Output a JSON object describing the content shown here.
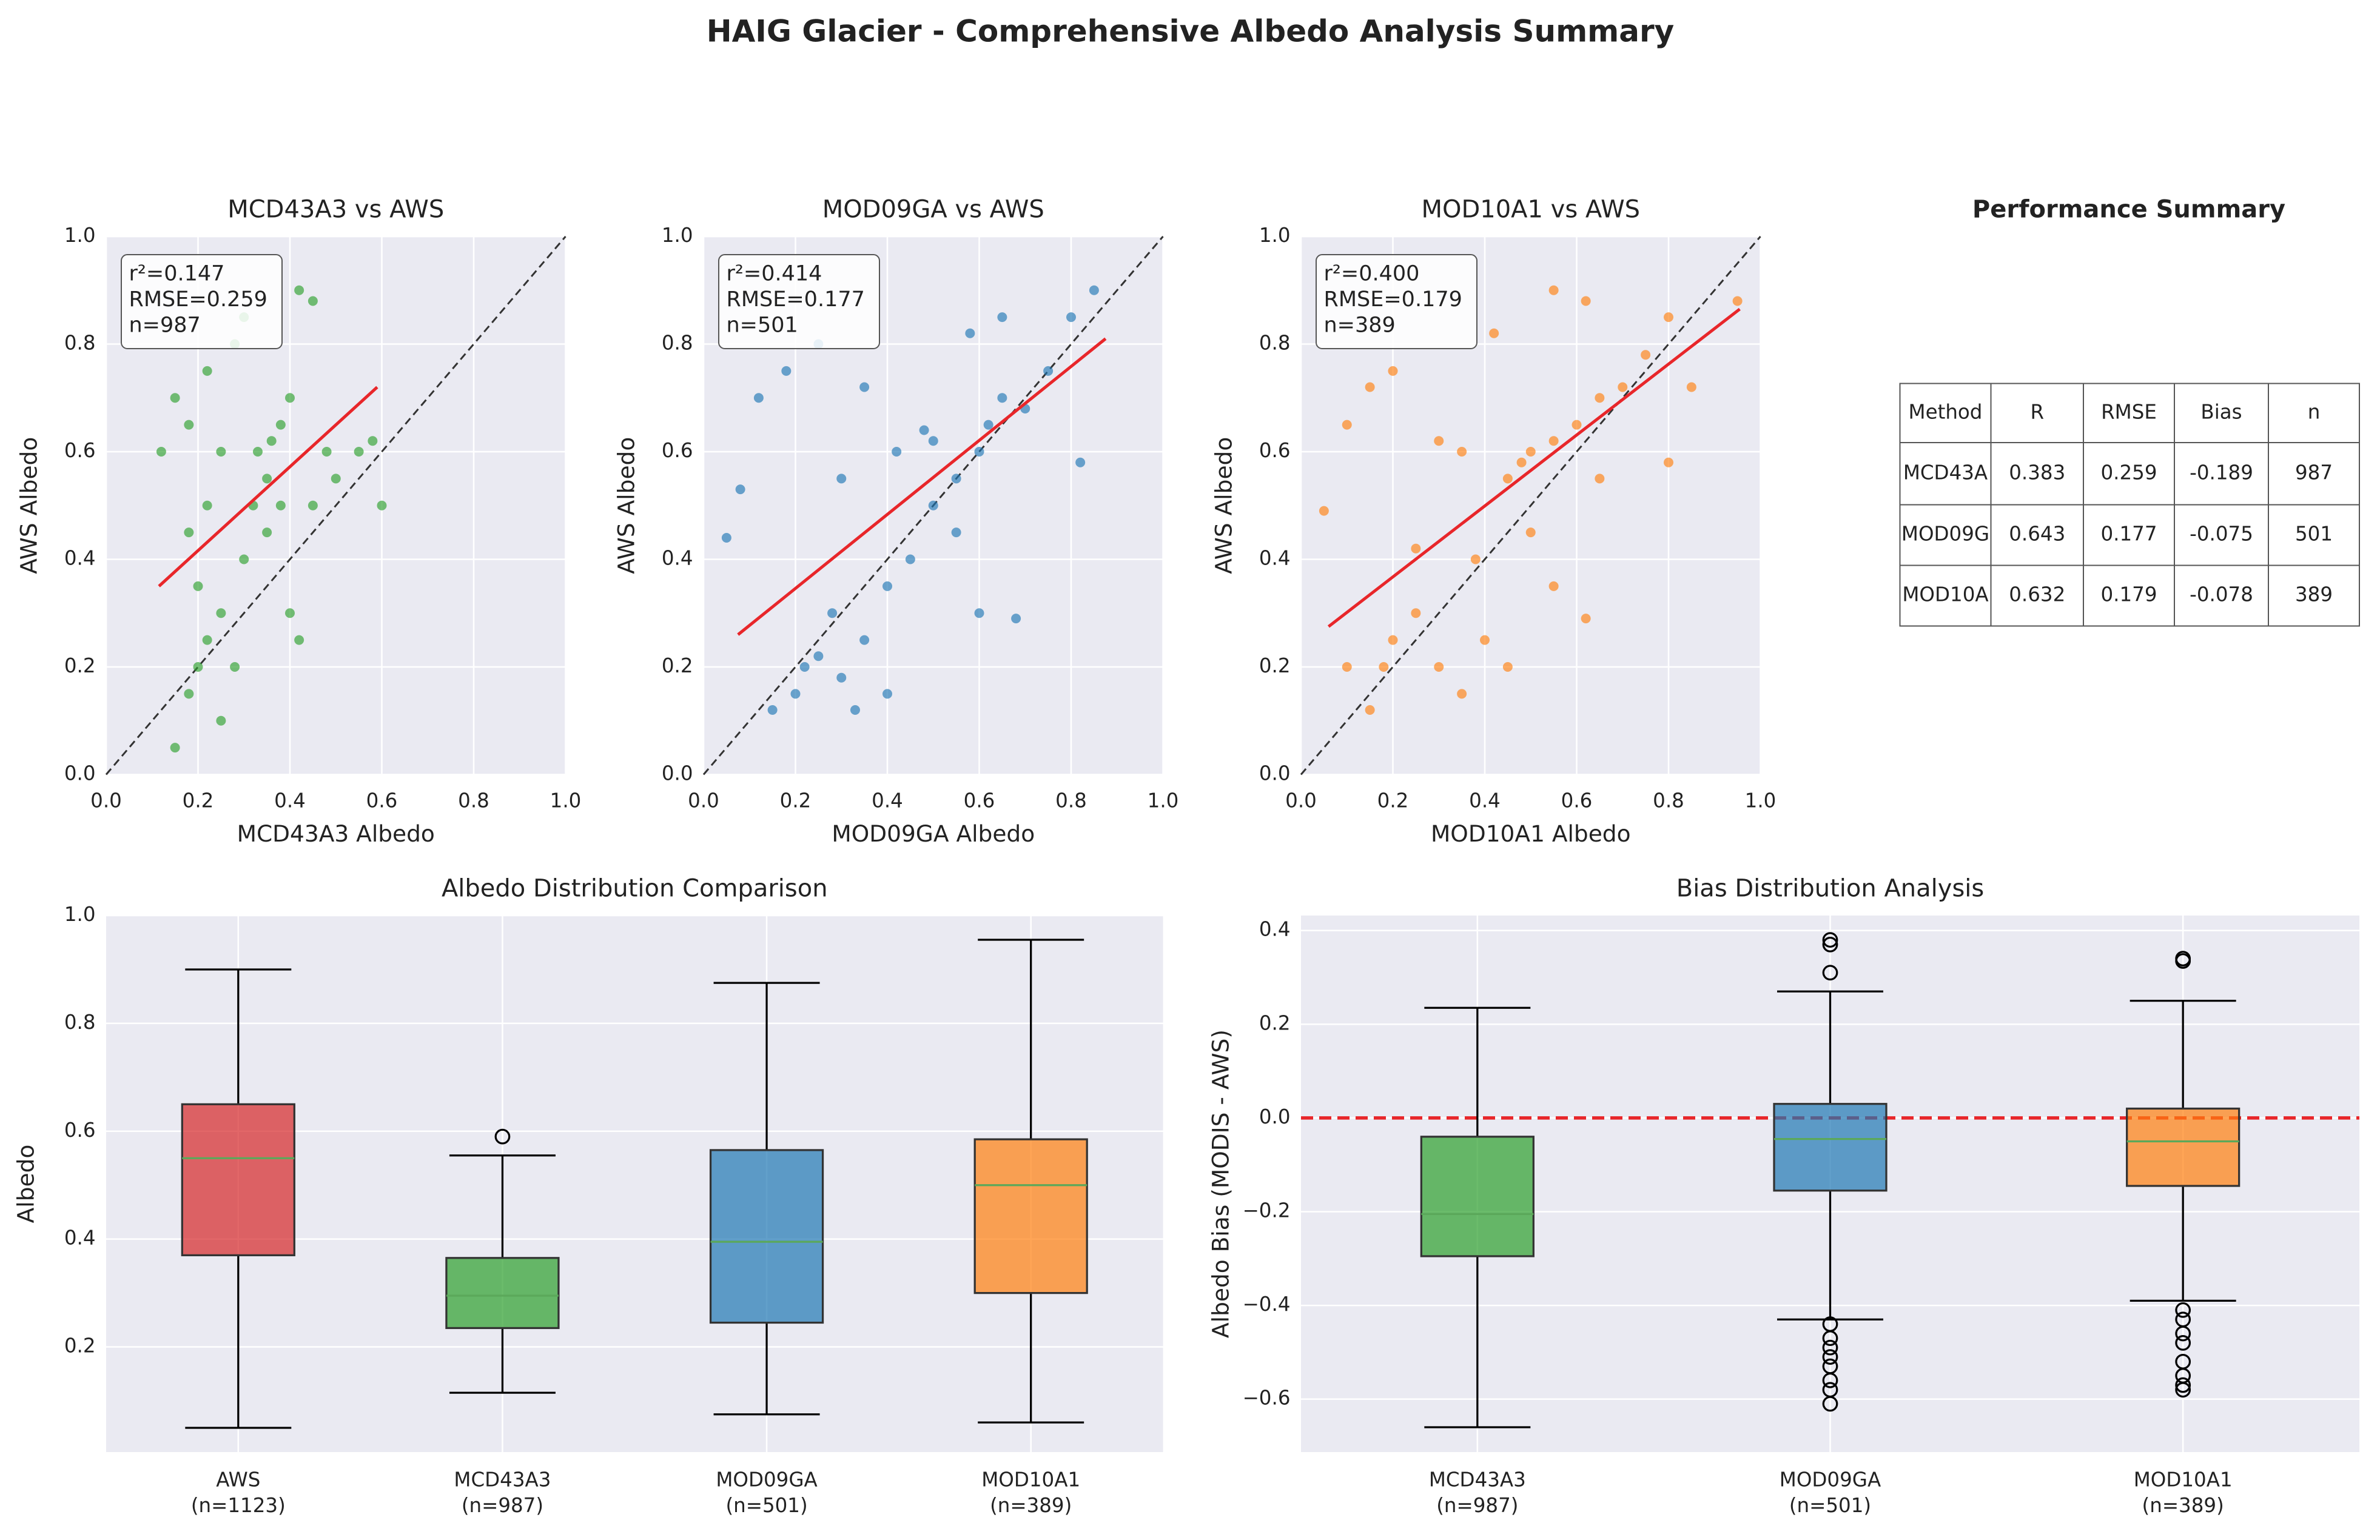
{
  "title": "HAIG Glacier - Comprehensive Albedo Analysis Summary",
  "chart_data": [
    {
      "type": "scatter",
      "title": "MCD43A3 vs AWS",
      "x_label": "MCD43A3 Albedo",
      "y_label": "AWS Albedo",
      "color": "#2ca02c",
      "annotation": [
        "r²=0.147",
        "RMSE=0.259",
        "n=987"
      ],
      "x": [
        0.15,
        0.18,
        0.2,
        0.22,
        0.25,
        0.2,
        0.18,
        0.22,
        0.25,
        0.18,
        0.15,
        0.22,
        0.28,
        0.3,
        0.33,
        0.35,
        0.38,
        0.4,
        0.42,
        0.45,
        0.38,
        0.35,
        0.3,
        0.4,
        0.42,
        0.45,
        0.5,
        0.55,
        0.6,
        0.58,
        0.28,
        0.25,
        0.32,
        0.36,
        0.12,
        0.48
      ],
      "y": [
        0.05,
        0.15,
        0.2,
        0.25,
        0.3,
        0.35,
        0.45,
        0.5,
        0.6,
        0.65,
        0.7,
        0.75,
        0.8,
        0.85,
        0.6,
        0.55,
        0.65,
        0.7,
        0.9,
        0.88,
        0.5,
        0.45,
        0.4,
        0.3,
        0.25,
        0.5,
        0.55,
        0.6,
        0.5,
        0.62,
        0.2,
        0.1,
        0.5,
        0.62,
        0.6,
        0.6
      ],
      "fit": {
        "color": "#e8262a",
        "x": [
          0.115,
          0.59
        ],
        "y": [
          0.35,
          0.72
        ]
      },
      "xlim": [
        0,
        1
      ],
      "ylim": [
        0,
        1
      ],
      "xticks": [
        {
          "value": 0,
          "label": "0.0"
        },
        0.2,
        0.4,
        0.6,
        0.8,
        {
          "value": 1,
          "label": "1.0"
        }
      ],
      "yticks": [
        {
          "value": 0,
          "label": "0.0"
        },
        0.2,
        0.4,
        0.6,
        0.8,
        {
          "value": 1,
          "label": "1.0"
        }
      ],
      "grid": true
    },
    {
      "type": "scatter",
      "title": "MOD09GA vs AWS",
      "x_label": "MOD09GA Albedo",
      "y_label": "AWS Albedo",
      "color": "#1f77b4",
      "annotation": [
        "r²=0.414",
        "RMSE=0.177",
        "n=501"
      ],
      "x": [
        0.15,
        0.2,
        0.22,
        0.25,
        0.3,
        0.35,
        0.28,
        0.4,
        0.45,
        0.5,
        0.55,
        0.6,
        0.62,
        0.65,
        0.7,
        0.75,
        0.8,
        0.85,
        0.05,
        0.08,
        0.12,
        0.18,
        0.25,
        0.35,
        0.3,
        0.42,
        0.5,
        0.55,
        0.6,
        0.68,
        0.58,
        0.65,
        0.4,
        0.33,
        0.82,
        0.48
      ],
      "y": [
        0.12,
        0.15,
        0.2,
        0.22,
        0.18,
        0.25,
        0.3,
        0.35,
        0.4,
        0.5,
        0.55,
        0.6,
        0.65,
        0.7,
        0.68,
        0.75,
        0.85,
        0.9,
        0.44,
        0.53,
        0.7,
        0.75,
        0.8,
        0.72,
        0.55,
        0.6,
        0.62,
        0.45,
        0.3,
        0.29,
        0.82,
        0.85,
        0.15,
        0.12,
        0.58,
        0.64
      ],
      "fit": {
        "color": "#e8262a",
        "x": [
          0.075,
          0.875
        ],
        "y": [
          0.26,
          0.81
        ]
      },
      "xlim": [
        0,
        1
      ],
      "ylim": [
        0,
        1
      ],
      "xticks": [
        {
          "value": 0,
          "label": "0.0"
        },
        0.2,
        0.4,
        0.6,
        0.8,
        {
          "value": 1,
          "label": "1.0"
        }
      ],
      "yticks": [
        {
          "value": 0,
          "label": "0.0"
        },
        0.2,
        0.4,
        0.6,
        0.8,
        {
          "value": 1,
          "label": "1.0"
        }
      ],
      "grid": true
    },
    {
      "type": "scatter",
      "title": "MOD10A1 vs AWS",
      "x_label": "MOD10A1 Albedo",
      "y_label": "AWS Albedo",
      "color": "#ff7f0e",
      "annotation": [
        "r²=0.400",
        "RMSE=0.179",
        "n=389"
      ],
      "x": [
        0.15,
        0.18,
        0.2,
        0.25,
        0.3,
        0.35,
        0.4,
        0.45,
        0.1,
        0.05,
        0.1,
        0.15,
        0.2,
        0.3,
        0.35,
        0.45,
        0.5,
        0.55,
        0.6,
        0.65,
        0.7,
        0.75,
        0.8,
        0.85,
        0.95,
        0.55,
        0.62,
        0.5,
        0.55,
        0.62,
        0.65,
        0.8,
        0.42,
        0.25,
        0.38,
        0.48
      ],
      "y": [
        0.12,
        0.2,
        0.25,
        0.3,
        0.2,
        0.15,
        0.25,
        0.2,
        0.2,
        0.49,
        0.65,
        0.72,
        0.75,
        0.62,
        0.6,
        0.55,
        0.6,
        0.62,
        0.65,
        0.7,
        0.72,
        0.78,
        0.85,
        0.72,
        0.88,
        0.9,
        0.88,
        0.45,
        0.35,
        0.29,
        0.55,
        0.58,
        0.82,
        0.42,
        0.4,
        0.58
      ],
      "fit": {
        "color": "#e8262a",
        "x": [
          0.06,
          0.955
        ],
        "y": [
          0.275,
          0.865
        ]
      },
      "xlim": [
        0,
        1
      ],
      "ylim": [
        0,
        1
      ],
      "xticks": [
        {
          "value": 0,
          "label": "0.0"
        },
        0.2,
        0.4,
        0.6,
        0.8,
        {
          "value": 1,
          "label": "1.0"
        }
      ],
      "yticks": [
        {
          "value": 0,
          "label": "0.0"
        },
        0.2,
        0.4,
        0.6,
        0.8,
        {
          "value": 1,
          "label": "1.0"
        }
      ],
      "grid": true
    },
    {
      "type": "box",
      "title": "Albedo Distribution Comparison",
      "y_label": "Albedo",
      "categories": [
        "AWS",
        "MCD43A3",
        "MOD09GA",
        "MOD10A1"
      ],
      "n_labels": [
        "(n=1123)",
        "(n=987)",
        "(n=501)",
        "(n=389)"
      ],
      "boxes": [
        {
          "color": "#d62728",
          "whislo": 0.05,
          "q1": 0.37,
          "med": 0.55,
          "q3": 0.65,
          "whishi": 0.9,
          "fliers": []
        },
        {
          "color": "#2ca02c",
          "whislo": 0.115,
          "q1": 0.235,
          "med": 0.295,
          "q3": 0.365,
          "whishi": 0.555,
          "fliers": [
            0.59
          ]
        },
        {
          "color": "#1f77b4",
          "whislo": 0.075,
          "q1": 0.245,
          "med": 0.395,
          "q3": 0.565,
          "whishi": 0.875,
          "fliers": []
        },
        {
          "color": "#ff7f0e",
          "whislo": 0.06,
          "q1": 0.3,
          "med": 0.5,
          "q3": 0.585,
          "whishi": 0.955,
          "fliers": []
        }
      ],
      "median_color": "#5ba85a",
      "ylim": [
        0.005,
        1.0
      ],
      "yticks": [
        0.2,
        0.4,
        0.6,
        0.8,
        {
          "value": 1,
          "label": "1.0"
        }
      ],
      "grid": true
    },
    {
      "type": "box",
      "title": "Bias Distribution Analysis",
      "y_label": "Albedo Bias (MODIS - AWS)",
      "categories": [
        "MCD43A3",
        "MOD09GA",
        "MOD10A1"
      ],
      "n_labels": [
        "(n=987)",
        "(n=501)",
        "(n=389)"
      ],
      "boxes": [
        {
          "color": "#2ca02c",
          "whislo": -0.66,
          "q1": -0.295,
          "med": -0.205,
          "q3": -0.04,
          "whishi": 0.235,
          "fliers": []
        },
        {
          "color": "#1f77b4",
          "whislo": -0.43,
          "q1": -0.155,
          "med": -0.045,
          "q3": 0.03,
          "whishi": 0.27,
          "fliers": [
            0.38,
            0.37,
            0.31,
            -0.44,
            -0.47,
            -0.49,
            -0.51,
            -0.53,
            -0.56,
            -0.58,
            -0.61
          ]
        },
        {
          "color": "#ff7f0e",
          "whislo": -0.39,
          "q1": -0.145,
          "med": -0.05,
          "q3": 0.02,
          "whishi": 0.25,
          "fliers": [
            0.34,
            0.335,
            -0.41,
            -0.43,
            -0.46,
            -0.48,
            -0.52,
            -0.55,
            -0.57,
            -0.58
          ]
        }
      ],
      "median_color": "#5ba85a",
      "hline": {
        "value": 0,
        "color": "#e8262a"
      },
      "ylim": [
        -0.713,
        0.432
      ],
      "yticks": [
        {
          "value": -0.6,
          "label": "−0.6"
        },
        {
          "value": -0.4,
          "label": "−0.4"
        },
        {
          "value": -0.2,
          "label": "−0.2"
        },
        {
          "value": 0,
          "label": "0.0"
        },
        0.2,
        0.4
      ],
      "grid": true
    }
  ],
  "table": {
    "title": "Performance Summary",
    "columns": [
      "Method",
      "R",
      "RMSE",
      "Bias",
      "n"
    ],
    "rows": [
      [
        "MCD43A",
        0.383,
        0.259,
        -0.189,
        987
      ],
      [
        "MOD09G",
        0.643,
        0.177,
        -0.075,
        501
      ],
      [
        "MOD10A",
        0.632,
        0.179,
        -0.078,
        389
      ]
    ]
  }
}
